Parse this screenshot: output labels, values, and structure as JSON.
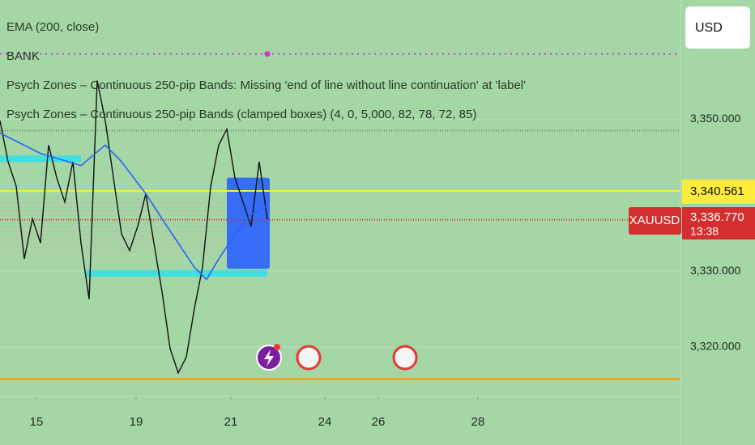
{
  "chart_data": {
    "type": "line",
    "symbol": "XAUUSD",
    "currency": "USD",
    "countdown": "13:38",
    "legend_lines": [
      "EMA (200, close)",
      "BANK",
      "Psych Zones – Continuous 250-pip Bands: Missing 'end of line without line continuation' at 'label'",
      "Psych Zones – Continuous 250-pip Bands (clamped boxes) (4, 0, 5,000, 82, 78, 72, 85)"
    ],
    "xlim": [
      0,
      84
    ],
    "ylim": [
      3313.5,
      3365.7
    ],
    "xticks": [
      {
        "value": 4.5,
        "label": "15"
      },
      {
        "value": 16.8,
        "label": "19"
      },
      {
        "value": 28.5,
        "label": "21"
      },
      {
        "value": 40.1,
        "label": "24"
      },
      {
        "value": 46.7,
        "label": "26"
      },
      {
        "value": 59.0,
        "label": "28"
      }
    ],
    "yticks": [
      {
        "value": 3350,
        "label": "3,350.000"
      },
      {
        "value": 3330,
        "label": "3,330.000"
      },
      {
        "value": 3320,
        "label": "3,320.000"
      }
    ],
    "last_close": {
      "value": 3336.77,
      "label": "3,336.770"
    },
    "marked_price": {
      "value": 3340.561,
      "label": "3,340.561"
    },
    "series": [
      {
        "color": "#111111",
        "x": [
          0,
          1,
          2,
          3,
          4,
          5,
          6,
          7,
          8,
          9,
          10,
          11,
          12,
          13,
          14,
          15,
          16,
          17,
          18,
          19,
          20,
          21,
          22,
          23,
          24,
          25,
          26,
          27,
          28,
          29,
          30,
          31,
          32,
          33
        ],
        "values": [
          3349.8,
          3344.4,
          3341.2,
          3331.6,
          3336.9,
          3333.7,
          3346.6,
          3342.3,
          3339.1,
          3344.4,
          3333.7,
          3326.3,
          3355.1,
          3349.8,
          3342.3,
          3334.9,
          3332.7,
          3335.9,
          3340.2,
          3333.7,
          3327.3,
          3319.8,
          3316.6,
          3318.7,
          3325.1,
          3330.5,
          3341.1,
          3346.6,
          3348.7,
          3342.3,
          3339.1,
          3335.9,
          3344.4,
          3336.8
        ]
      },
      {
        "color": "#2962ff",
        "x": [
          0,
          5,
          10,
          13,
          15,
          18,
          20,
          22,
          24,
          25.5,
          27,
          29,
          31,
          33
        ],
        "values": [
          3348.2,
          3345.5,
          3343.9,
          3346.6,
          3344.4,
          3340.2,
          3336.9,
          3333.7,
          3330.5,
          3328.9,
          3331.6,
          3334.8,
          3337.5,
          3338.6
        ]
      }
    ],
    "levels": [
      {
        "value": 3358.6,
        "color": "#d633d6",
        "dash": "2 5"
      },
      {
        "value": 3348.5,
        "color": "#6b8f6b",
        "dash": "1 2"
      },
      {
        "value": 3340.561,
        "color": "#ffeb3b",
        "dash": "none"
      },
      {
        "value": 3336.77,
        "color": "#d32f2f",
        "dash": "1 2"
      },
      {
        "value": 3315.8,
        "color": "#ff9800",
        "dash": "none"
      }
    ],
    "bands": [
      {
        "value": 3344.8,
        "from": 0,
        "to": 10,
        "color": "#40e0e0"
      },
      {
        "value": 3329.7,
        "from": 10.5,
        "to": 33,
        "color": "#40e0e0"
      }
    ],
    "box": {
      "from": 28,
      "to": 33.3,
      "top": 3342.3,
      "bottom": 3330.3,
      "color": "#2962ff"
    }
  }
}
